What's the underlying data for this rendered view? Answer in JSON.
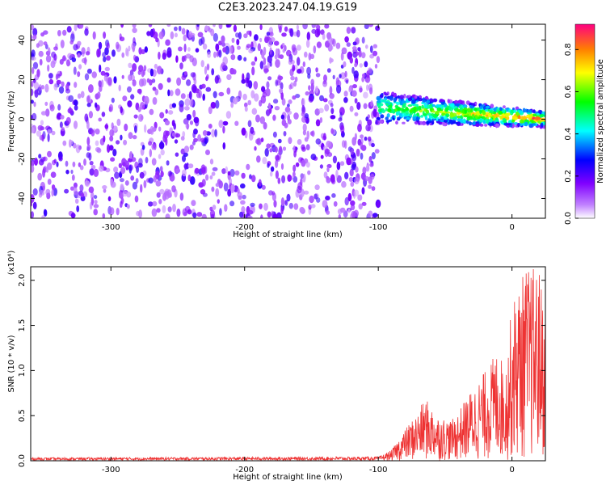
{
  "title": "C2E3.2023.247.04.19.G19",
  "chart_data": [
    {
      "type": "heatmap",
      "xlabel": "Height of straight line (km)",
      "ylabel": "Frequency (Hz)",
      "xlim": [
        -360,
        25
      ],
      "ylim": [
        -50,
        48
      ],
      "x_ticks": [
        "-300",
        "-200",
        "-100",
        "0"
      ],
      "y_ticks": [
        "-40",
        "-20",
        "0",
        "20",
        "40"
      ],
      "colorbar": {
        "label": "Normalized spectral amplitude",
        "range": [
          0.0,
          0.92
        ],
        "ticks": [
          "0.0",
          "0.2",
          "0.4",
          "0.6",
          "0.8"
        ],
        "colors": [
          "#ffffff",
          "#8000ff",
          "#0000ff",
          "#00ffff",
          "#00ff00",
          "#ffff00",
          "#ff8000",
          "#ff0080"
        ]
      },
      "regions": [
        {
          "x_range": [
            -360,
            -100
          ],
          "freq_range": [
            -50,
            48
          ],
          "amplitude": 0.15,
          "description": "noise"
        },
        {
          "x_range": [
            -100,
            25
          ],
          "freq_center": [
            6,
            0
          ],
          "freq_halfwidth": [
            6,
            3
          ],
          "amplitude": 0.7,
          "description": "signal"
        }
      ]
    },
    {
      "type": "line",
      "xlabel": "Height of straight line (km)",
      "ylabel": "SNR (10 * v/v)",
      "y_multiplier": "(x10⁴)",
      "xlim": [
        -360,
        25
      ],
      "ylim": [
        0,
        2.15
      ],
      "x_ticks": [
        "-300",
        "-200",
        "-100",
        "0"
      ],
      "y_ticks": [
        "0.0",
        "0.5",
        "1.0",
        "1.5",
        "2.0"
      ],
      "color": "#ee3333",
      "envelope": [
        {
          "x": -360,
          "y": 0.03
        },
        {
          "x": -100,
          "y": 0.04
        },
        {
          "x": -90,
          "y": 0.12
        },
        {
          "x": -80,
          "y": 0.35
        },
        {
          "x": -70,
          "y": 0.55
        },
        {
          "x": -65,
          "y": 0.7
        },
        {
          "x": -55,
          "y": 0.5
        },
        {
          "x": -45,
          "y": 0.45
        },
        {
          "x": -40,
          "y": 0.55
        },
        {
          "x": -30,
          "y": 0.8
        },
        {
          "x": -20,
          "y": 1.0
        },
        {
          "x": -10,
          "y": 1.25
        },
        {
          "x": -5,
          "y": 1.0
        },
        {
          "x": 0,
          "y": 1.75
        },
        {
          "x": 10,
          "y": 2.15
        },
        {
          "x": 20,
          "y": 2.15
        },
        {
          "x": 25,
          "y": 1.7
        }
      ]
    }
  ]
}
